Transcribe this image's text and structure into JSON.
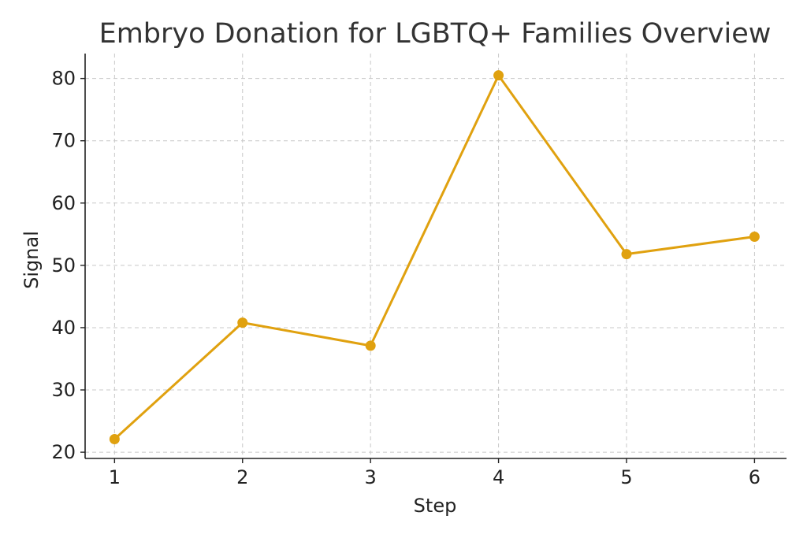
{
  "chart_data": {
    "type": "line",
    "title": "Embryo Donation for LGBTQ+ Families Overview",
    "xlabel": "Step",
    "ylabel": "Signal",
    "x": [
      1,
      2,
      3,
      4,
      5,
      6
    ],
    "xticks": [
      "1",
      "2",
      "3",
      "4",
      "5",
      "6"
    ],
    "yticks": [
      "20",
      "30",
      "40",
      "50",
      "60",
      "70",
      "80"
    ],
    "ytick_values": [
      20,
      30,
      40,
      50,
      60,
      70,
      80
    ],
    "xlim": [
      0.77,
      6.25
    ],
    "ylim": [
      19.0,
      84.0
    ],
    "grid": true,
    "series": [
      {
        "values": [
          22.1,
          40.8,
          37.1,
          80.5,
          51.8,
          54.6
        ],
        "color": "#e0a10f",
        "marker": "circle"
      }
    ]
  }
}
